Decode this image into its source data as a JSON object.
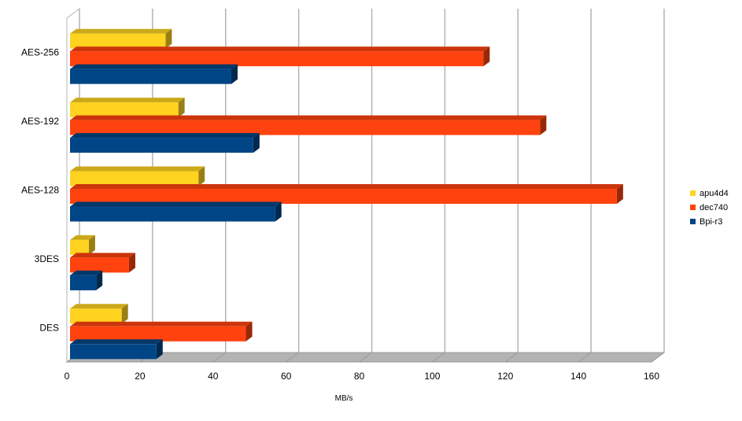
{
  "chart_data": {
    "type": "bar",
    "orientation": "horizontal",
    "three_d": true,
    "categories": [
      "AES-256",
      "AES-192",
      "AES-128",
      "3DES",
      "DES"
    ],
    "series": [
      {
        "name": "apu4d4",
        "values": [
          27,
          30.5,
          36,
          6,
          15
        ],
        "color": "#FFD320"
      },
      {
        "name": "dec740",
        "values": [
          114,
          129.5,
          150.5,
          17,
          49
        ],
        "color": "#FF420E"
      },
      {
        "name": "Bpi-r3",
        "values": [
          45,
          51,
          57,
          8,
          24.5
        ],
        "color": "#004586"
      }
    ],
    "xlim": [
      0,
      160
    ],
    "xticks": [
      "0",
      "20",
      "40",
      "60",
      "80",
      "100",
      "120",
      "140",
      "160"
    ],
    "xlabel": "MB/s",
    "ylabel": "",
    "title": "",
    "grid": true,
    "legend": "right"
  }
}
